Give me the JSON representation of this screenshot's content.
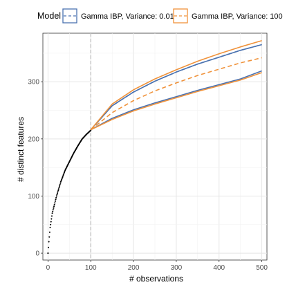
{
  "chart_data": {
    "type": "line",
    "xlabel": "# observations",
    "ylabel": "# distinct features",
    "xlim": [
      -12,
      512
    ],
    "ylim": [
      -12,
      385
    ],
    "x_ticks": [
      0,
      100,
      200,
      300,
      400,
      500
    ],
    "y_ticks": [
      0,
      100,
      200,
      300
    ],
    "grid": true,
    "vertical_reference_line": {
      "x": 100,
      "style": "dashed",
      "color": "#bdbdbd"
    },
    "legend": {
      "title": "Model",
      "position": "top",
      "entries": [
        {
          "label": "Gamma IBP, Variance: 0.01",
          "color": "#4a72b0"
        },
        {
          "label": "Gamma IBP, Variance: 100",
          "color": "#f0923a"
        }
      ]
    },
    "observed_points": {
      "color": "#000000",
      "description_points": [
        [
          0,
          0
        ],
        [
          2,
          20
        ],
        [
          5,
          45
        ],
        [
          10,
          70
        ],
        [
          20,
          100
        ],
        [
          30,
          125
        ],
        [
          40,
          145
        ],
        [
          50,
          160
        ],
        [
          60,
          175
        ],
        [
          70,
          188
        ],
        [
          80,
          200
        ],
        [
          90,
          208
        ],
        [
          100,
          215
        ]
      ]
    },
    "series": [
      {
        "name": "Gamma IBP, Variance: 0.01",
        "color": "#4a72b0",
        "line": "dashed",
        "x": [
          100,
          150,
          200,
          250,
          300,
          350,
          400,
          450,
          500
        ],
        "values": [
          216,
          258,
          282,
          301,
          317,
          331,
          343,
          355,
          365
        ]
      },
      {
        "name": "Gamma IBP, Variance: 0.01",
        "color": "#4a72b0",
        "line": "solid",
        "x": [
          100,
          150,
          200,
          250,
          300,
          350,
          400,
          450,
          500
        ],
        "values": [
          216,
          258,
          282,
          301,
          317,
          331,
          343,
          355,
          365
        ]
      },
      {
        "name": "Gamma IBP, Variance: 0.01",
        "color": "#4a72b0",
        "line": "solid",
        "x": [
          100,
          150,
          200,
          250,
          300,
          350,
          400,
          450,
          500
        ],
        "values": [
          216,
          236,
          251,
          263,
          274,
          285,
          295,
          305,
          319
        ]
      },
      {
        "name": "Gamma IBP, Variance: 100",
        "color": "#f0923a",
        "line": "dashed",
        "x": [
          100,
          150,
          200,
          250,
          300,
          350,
          400,
          450,
          500
        ],
        "values": [
          216,
          246,
          267,
          284,
          298,
          311,
          322,
          333,
          342
        ]
      },
      {
        "name": "Gamma IBP, Variance: 100",
        "color": "#f0923a",
        "line": "solid",
        "x": [
          100,
          150,
          200,
          250,
          300,
          350,
          400,
          450,
          500
        ],
        "values": [
          216,
          261,
          286,
          305,
          321,
          336,
          349,
          361,
          372
        ]
      },
      {
        "name": "Gamma IBP, Variance: 100",
        "color": "#f0923a",
        "line": "solid",
        "x": [
          100,
          150,
          200,
          250,
          300,
          350,
          400,
          450,
          500
        ],
        "values": [
          216,
          234,
          249,
          261,
          272,
          283,
          293,
          303,
          316
        ]
      }
    ]
  }
}
